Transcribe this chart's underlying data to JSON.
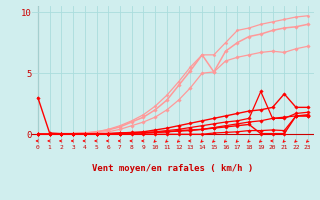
{
  "x": [
    0,
    1,
    2,
    3,
    4,
    5,
    6,
    7,
    8,
    9,
    10,
    11,
    12,
    13,
    14,
    15,
    16,
    17,
    18,
    19,
    20,
    21,
    22,
    23
  ],
  "lines": [
    {
      "y": [
        0.0,
        0.0,
        0.0,
        0.0,
        0.0,
        0.0,
        0.0,
        0.0,
        0.0,
        0.0,
        0.0,
        0.0,
        0.0,
        0.0,
        0.0,
        0.1,
        0.15,
        0.2,
        0.3,
        0.3,
        0.35,
        0.3,
        1.5,
        1.5
      ],
      "color": "#FF0000",
      "lw": 0.9,
      "marker": "D",
      "ms": 1.8,
      "zorder": 6
    },
    {
      "y": [
        0.0,
        0.0,
        0.0,
        0.0,
        0.0,
        0.0,
        0.0,
        0.05,
        0.1,
        0.12,
        0.15,
        0.2,
        0.25,
        0.3,
        0.4,
        0.55,
        0.7,
        0.85,
        1.0,
        1.1,
        1.3,
        1.4,
        1.5,
        1.6
      ],
      "color": "#FF0000",
      "lw": 0.9,
      "marker": "D",
      "ms": 1.8,
      "zorder": 6
    },
    {
      "y": [
        0.0,
        0.0,
        0.0,
        0.0,
        0.0,
        0.0,
        0.0,
        0.05,
        0.1,
        0.15,
        0.2,
        0.3,
        0.4,
        0.55,
        0.7,
        0.85,
        1.0,
        1.1,
        1.3,
        3.5,
        1.3,
        1.3,
        1.7,
        1.8
      ],
      "color": "#FF0000",
      "lw": 0.9,
      "marker": "D",
      "ms": 1.8,
      "zorder": 6
    },
    {
      "y": [
        0.0,
        0.0,
        0.0,
        0.0,
        0.0,
        0.0,
        0.05,
        0.1,
        0.15,
        0.2,
        0.35,
        0.5,
        0.7,
        0.9,
        1.1,
        1.3,
        1.5,
        1.7,
        1.9,
        2.0,
        2.2,
        3.3,
        2.2,
        2.2
      ],
      "color": "#FF0000",
      "lw": 1.0,
      "marker": "D",
      "ms": 1.8,
      "zorder": 5
    },
    {
      "y": [
        3.0,
        0.1,
        0.05,
        0.05,
        0.05,
        0.05,
        0.05,
        0.1,
        0.1,
        0.1,
        0.15,
        0.2,
        0.3,
        0.35,
        0.4,
        0.5,
        0.6,
        0.7,
        0.8,
        0.05,
        0.05,
        0.05,
        1.5,
        1.5
      ],
      "color": "#FF0000",
      "lw": 1.0,
      "marker": "D",
      "ms": 1.8,
      "zorder": 7
    },
    {
      "y": [
        0.0,
        0.0,
        0.0,
        0.05,
        0.1,
        0.15,
        0.2,
        0.4,
        0.7,
        1.0,
        1.4,
        2.0,
        2.8,
        3.8,
        5.0,
        5.1,
        6.0,
        6.3,
        6.5,
        6.7,
        6.8,
        6.7,
        7.0,
        7.2
      ],
      "color": "#FF9999",
      "lw": 0.9,
      "marker": "D",
      "ms": 1.8,
      "zorder": 3
    },
    {
      "y": [
        0.0,
        0.0,
        0.0,
        0.05,
        0.1,
        0.2,
        0.35,
        0.6,
        1.0,
        1.4,
        2.0,
        2.8,
        4.0,
        5.2,
        6.5,
        5.1,
        6.8,
        7.5,
        8.0,
        8.2,
        8.5,
        8.7,
        8.8,
        9.0
      ],
      "color": "#FF9999",
      "lw": 1.1,
      "marker": "D",
      "ms": 1.8,
      "zorder": 2
    },
    {
      "y": [
        0.0,
        0.0,
        0.0,
        0.05,
        0.1,
        0.2,
        0.4,
        0.7,
        1.1,
        1.6,
        2.3,
        3.2,
        4.3,
        5.5,
        6.5,
        6.5,
        7.5,
        8.5,
        8.7,
        9.0,
        9.2,
        9.4,
        9.6,
        9.7
      ],
      "color": "#FF9999",
      "lw": 0.9,
      "marker": "D",
      "ms": 1.5,
      "zorder": 2
    }
  ],
  "xlabel": "Vent moyen/en rafales ( km/h )",
  "xlim": [
    -0.5,
    23.5
  ],
  "ylim": [
    -0.8,
    10.5
  ],
  "plot_ylim": [
    0.0,
    10.0
  ],
  "yticks": [
    0,
    5,
    10
  ],
  "xticks": [
    0,
    1,
    2,
    3,
    4,
    5,
    6,
    7,
    8,
    9,
    10,
    11,
    12,
    13,
    14,
    15,
    16,
    17,
    18,
    19,
    20,
    21,
    22,
    23
  ],
  "bg_color": "#D0EEEE",
  "grid_color": "#AADDDD",
  "arrow_color": "#FF0000",
  "xlabel_color": "#CC0000",
  "tick_color": "#CC0000",
  "hline_color": "#CC0000",
  "vline_color": "#888888",
  "arrow_directions": [
    270,
    270,
    270,
    270,
    270,
    270,
    270,
    270,
    270,
    270,
    315,
    315,
    315,
    270,
    315,
    315,
    315,
    315,
    315,
    315,
    270,
    315,
    315,
    315
  ]
}
